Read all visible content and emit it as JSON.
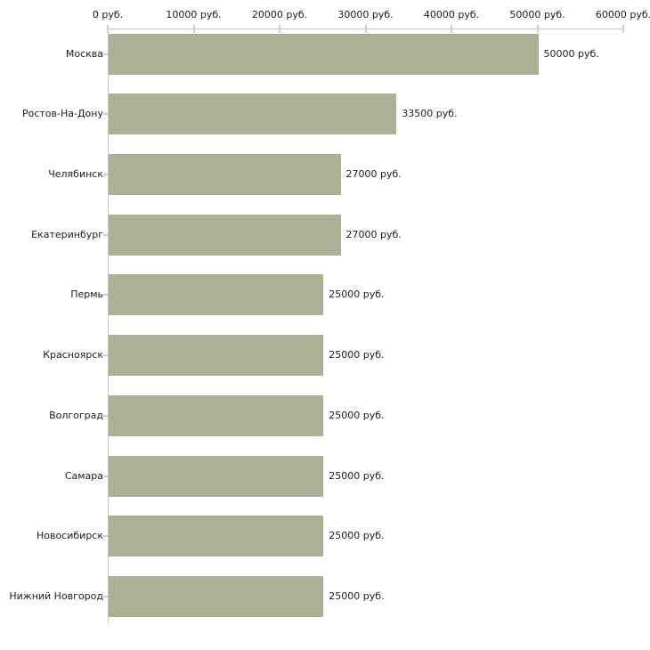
{
  "chart_data": {
    "type": "bar",
    "orientation": "horizontal",
    "title": "",
    "xlabel": "",
    "ylabel": "",
    "xlim": [
      0,
      60000
    ],
    "axis_position": "top",
    "grid": false,
    "legend": false,
    "x_ticks": [
      0,
      10000,
      20000,
      30000,
      40000,
      50000,
      60000
    ],
    "x_tick_labels": [
      "0 руб.",
      "10000 руб.",
      "20000 руб.",
      "30000 руб.",
      "40000 руб.",
      "50000 руб.",
      "60000 руб."
    ],
    "categories": [
      "Москва",
      "Ростов-На-Дону",
      "Челябинск",
      "Екатеринбург",
      "Пермь",
      "Красноярск",
      "Волгоград",
      "Самара",
      "Новосибирск",
      "Нижний Новгород"
    ],
    "values": [
      50000,
      33500,
      27000,
      27000,
      25000,
      25000,
      25000,
      25000,
      25000,
      25000
    ],
    "value_labels": [
      "50000 руб.",
      "33500 руб.",
      "27000 руб.",
      "27000 руб.",
      "25000 руб.",
      "25000 руб.",
      "25000 руб.",
      "25000 руб.",
      "25000 руб.",
      "25000 руб."
    ],
    "colors": {
      "bar": "#abb194",
      "tick": "#d6d3ae",
      "axis": "#c6c6c6",
      "text": "#1c1c1c",
      "background": "#ffffff"
    }
  }
}
